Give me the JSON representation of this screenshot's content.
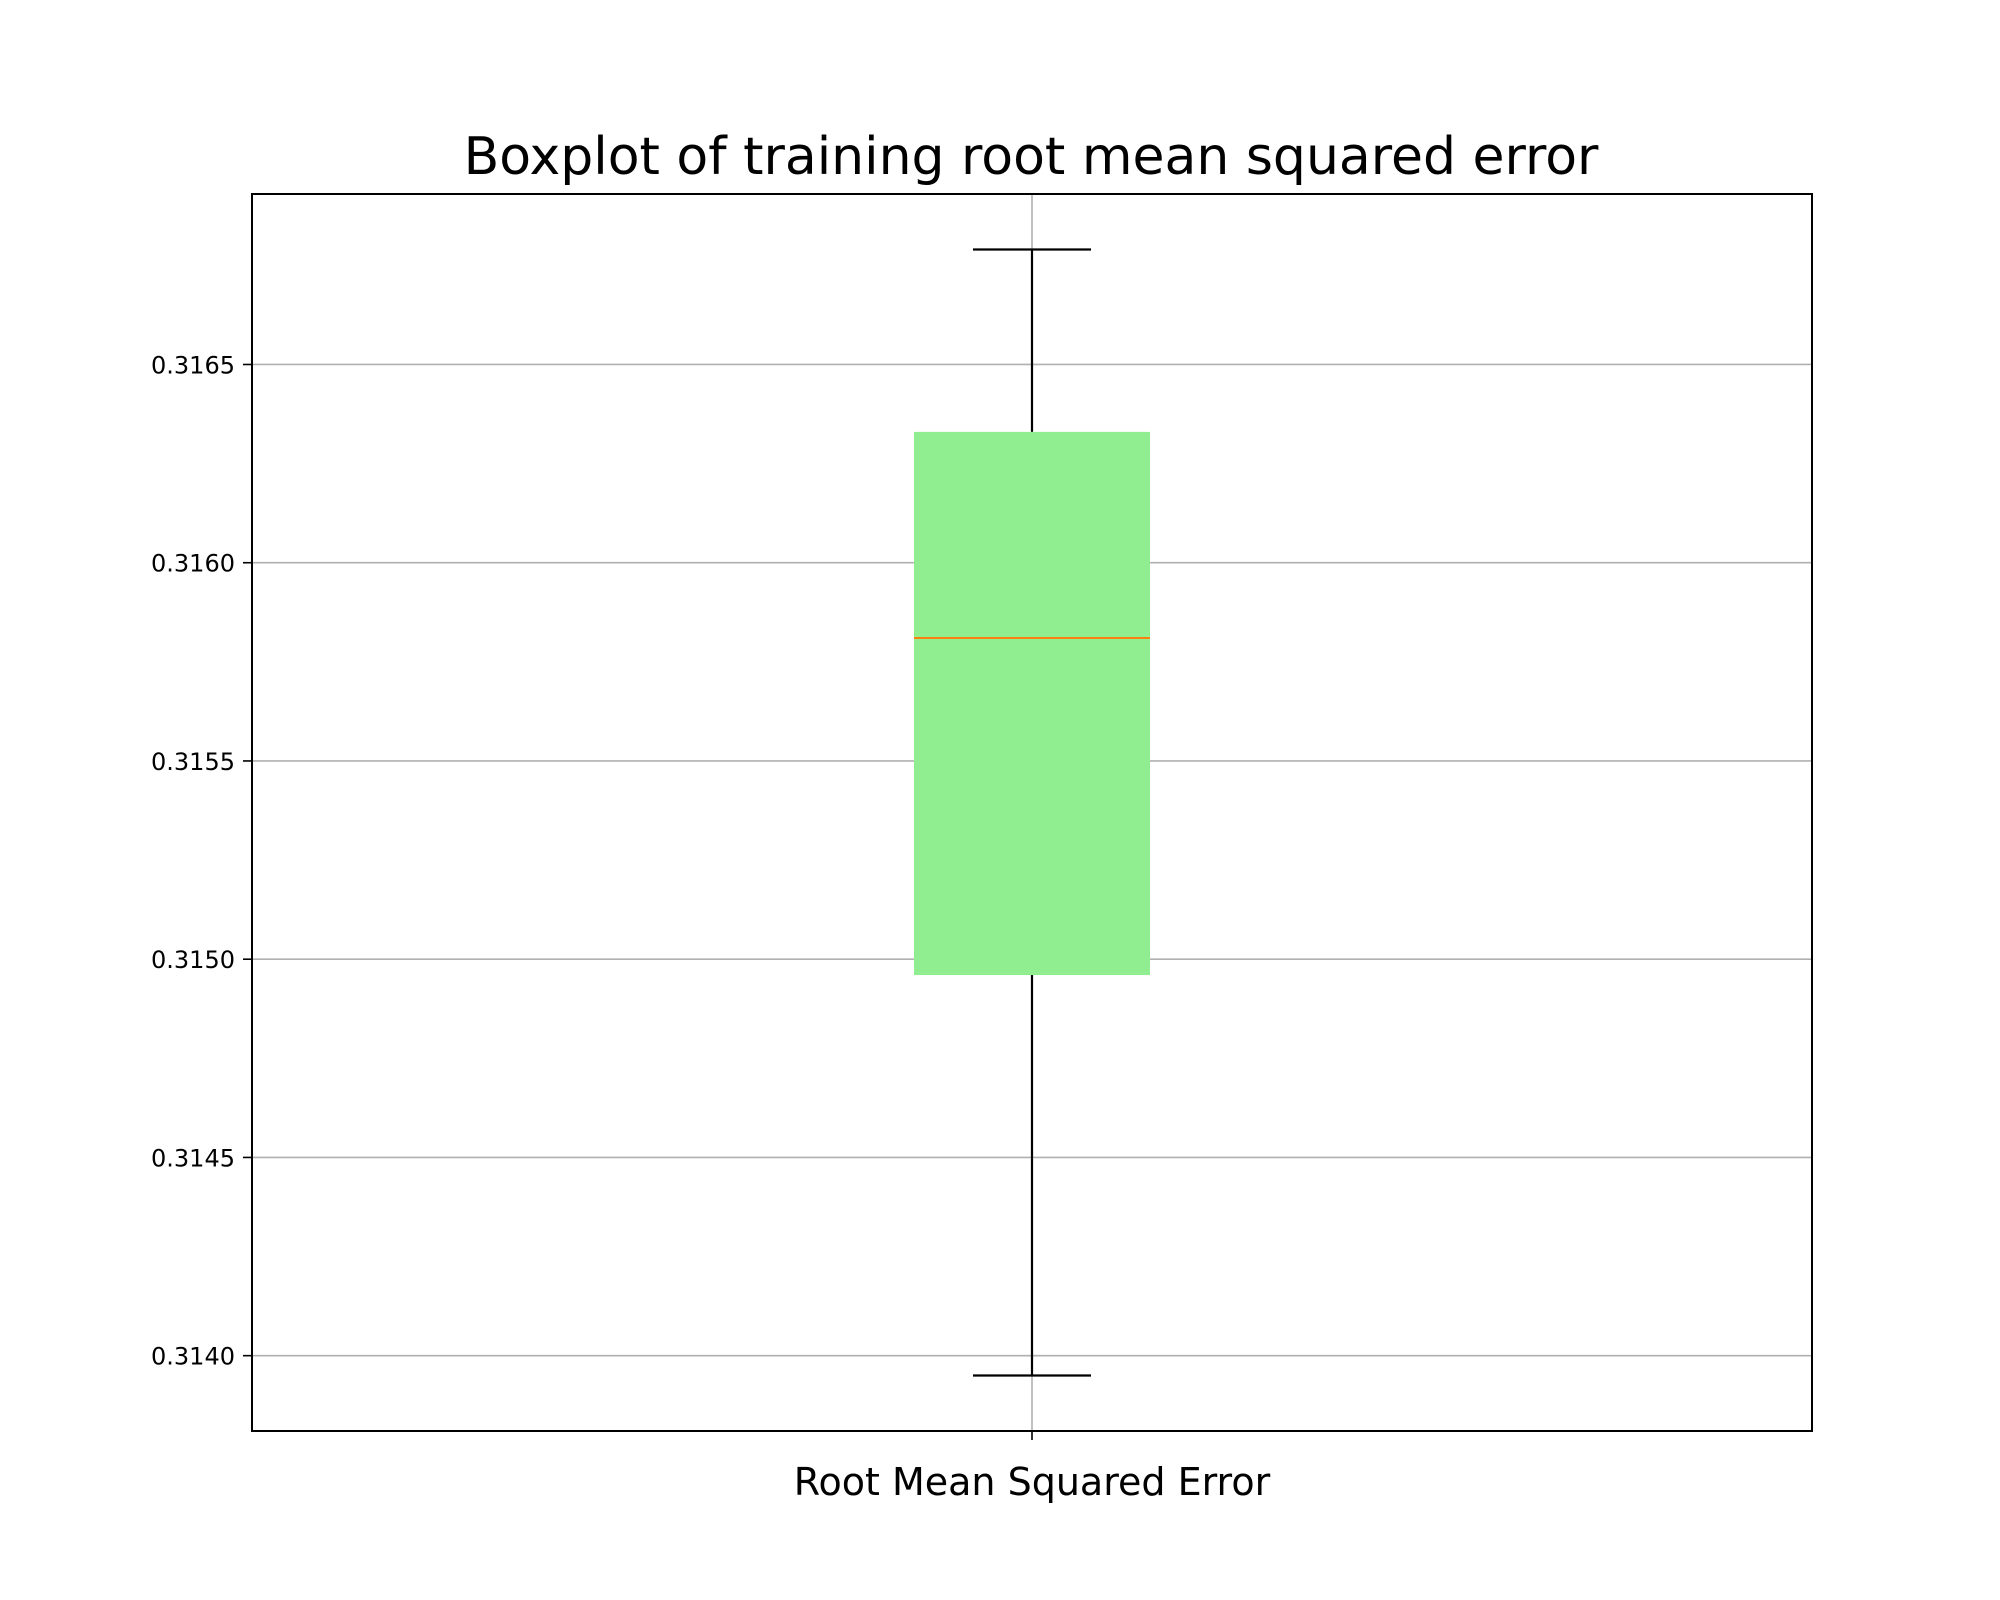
{
  "chart_data": {
    "type": "box",
    "title": "Boxplot of training root mean squared error",
    "categories": [
      "Root Mean Squared Error"
    ],
    "boxes": [
      {
        "category": "Root Mean Squared Error",
        "whisker_low": 0.31395,
        "q1": 0.31496,
        "median": 0.31581,
        "q3": 0.31633,
        "whisker_high": 0.31679
      }
    ],
    "ylim": [
      0.31381,
      0.31693
    ],
    "yticks": [
      0.314,
      0.3145,
      0.315,
      0.3155,
      0.316,
      0.3165
    ],
    "ytick_labels": [
      "0.3140",
      "0.3145",
      "0.3150",
      "0.3155",
      "0.3160",
      "0.3165"
    ],
    "grid": true,
    "colors": {
      "box_fill": "#90ee90",
      "median_line": "#ff7f0e",
      "whisker": "#000000",
      "grid": "#b0b0b0",
      "frame": "#000000"
    }
  }
}
